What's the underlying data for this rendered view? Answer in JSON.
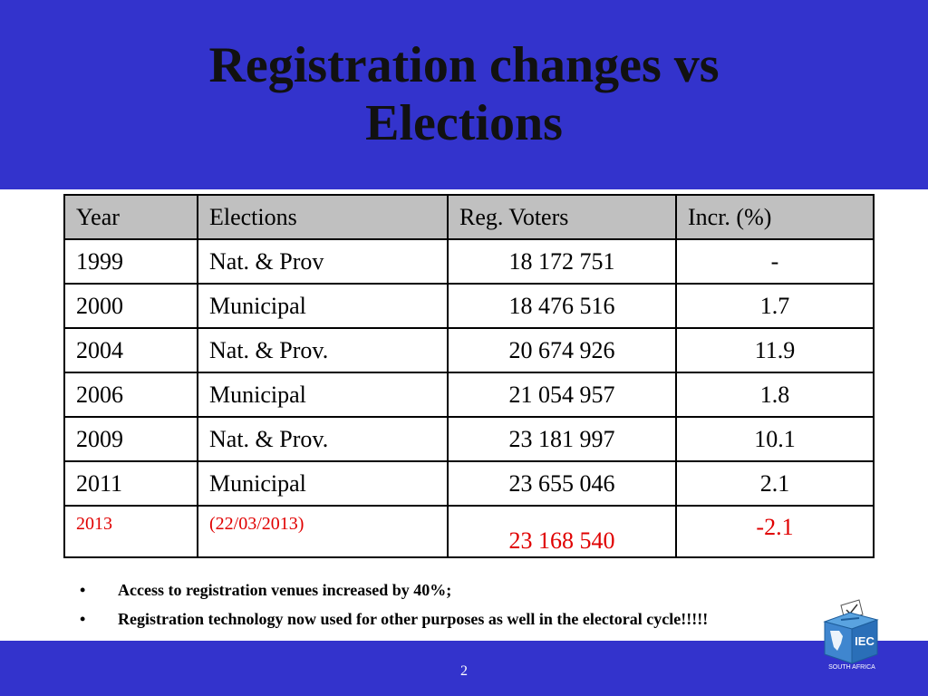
{
  "slide": {
    "title_line1": "Registration changes vs",
    "title_line2": "Elections",
    "page_number": "2"
  },
  "colors": {
    "band_blue": "#3333cc",
    "header_gray": "#c0c0c0",
    "highlight_red": "#e00000"
  },
  "table": {
    "headers": [
      "Year",
      "Elections",
      "Reg. Voters",
      "Incr. (%)"
    ],
    "rows": [
      [
        "1999",
        "Nat. & Prov",
        "18 172 751",
        "-"
      ],
      [
        "2000",
        "Municipal",
        "18 476 516",
        "1.7"
      ],
      [
        "2004",
        "Nat. & Prov.",
        "20 674 926",
        "11.9"
      ],
      [
        "2006",
        "Municipal",
        "21 054 957",
        "1.8"
      ],
      [
        "2009",
        "Nat. & Prov.",
        "23 181 997",
        "10.1"
      ],
      [
        "2011",
        "Municipal",
        "23 655 046",
        "2.1"
      ],
      [
        "2013",
        "(22/03/2013)",
        "23 168 540",
        "-2.1"
      ]
    ]
  },
  "bullets": [
    "Access to registration venues increased by 40%;",
    "Registration technology now used for other purposes as well in the electoral cycle!!!!!"
  ],
  "logo": {
    "icon": "iec-ballot-box-logo-icon",
    "text": "IEC",
    "caption": "SOUTH AFRICA"
  }
}
